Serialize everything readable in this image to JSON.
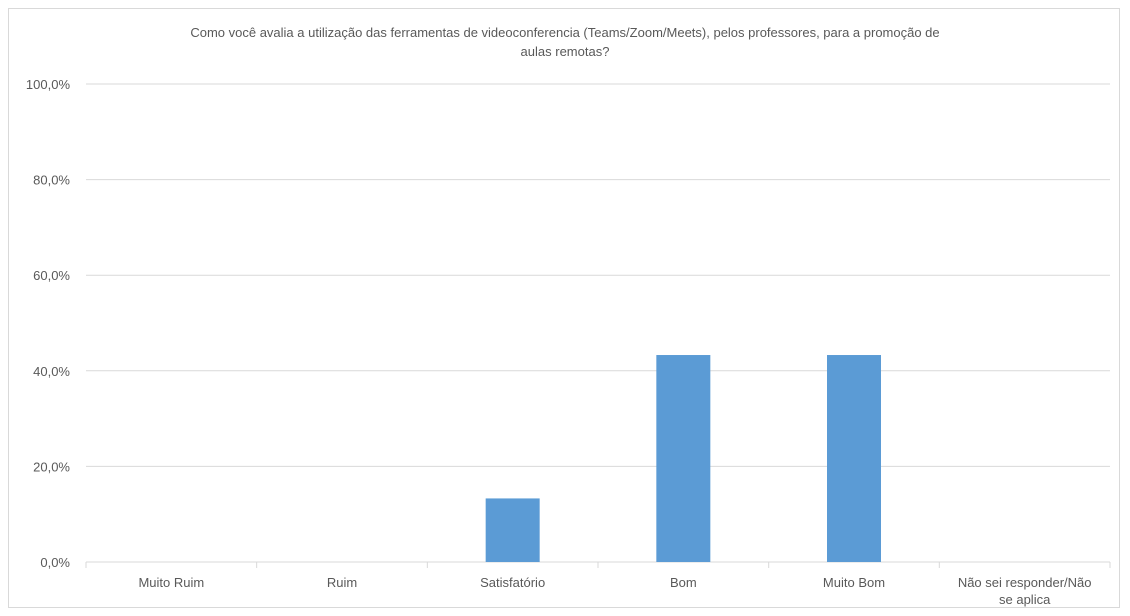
{
  "chart_data": {
    "type": "bar",
    "title_lines": [
      "Como você avalia a utilização das ferramentas de videoconferencia (Teams/Zoom/Meets),  pelos professores, para a promoção de",
      "aulas remotas?"
    ],
    "categories": [
      [
        "Muito Ruim"
      ],
      [
        "Ruim"
      ],
      [
        "Satisfatório"
      ],
      [
        "Bom"
      ],
      [
        "Muito Bom"
      ],
      [
        "Não sei responder/Não",
        "se aplica"
      ]
    ],
    "values": [
      0,
      0,
      13.3,
      43.3,
      43.3,
      0
    ],
    "ylim": [
      0,
      100
    ],
    "yticks": [
      "0,0%",
      "20,0%",
      "40,0%",
      "60,0%",
      "80,0%",
      "100,0%"
    ],
    "ytick_values": [
      0,
      20,
      40,
      60,
      80,
      100
    ],
    "grid": true,
    "bar_color": "#5b9bd5",
    "grid_color": "#d9d9d9"
  }
}
